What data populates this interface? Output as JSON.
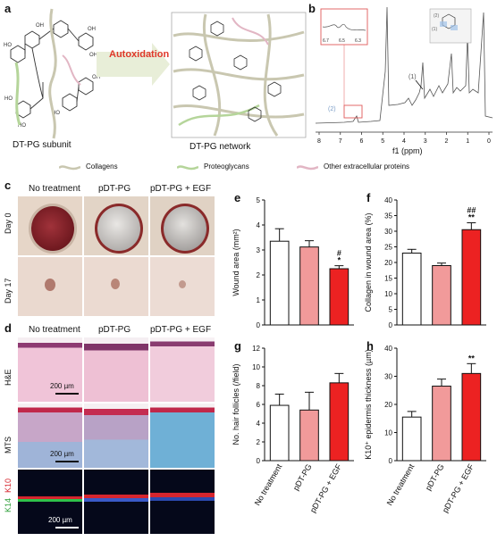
{
  "panel_labels": {
    "a": "a",
    "b": "b",
    "c": "c",
    "d": "d",
    "e": "e",
    "f": "f",
    "g": "g",
    "h": "h"
  },
  "panel_a": {
    "arrow_label": "Autoxidation",
    "left_caption": "DT-PG subunit",
    "right_caption": "DT-PG network"
  },
  "panel_b": {
    "xlabel": "f1 (ppm)",
    "xticks": [
      "8",
      "7",
      "6",
      "5",
      "4",
      "3",
      "2",
      "1",
      "0"
    ],
    "inset_xticks": [
      "6.7",
      "6.5",
      "6.3"
    ],
    "peak_labels": [
      "(1)",
      "(2)"
    ]
  },
  "legend": {
    "items": [
      {
        "label": "Collagens",
        "color": "#c9c7b0"
      },
      {
        "label": "Proteoglycans",
        "color": "#b5d59a"
      },
      {
        "label": "Other extracellular proteins",
        "color": "#e2b6c4"
      }
    ]
  },
  "panel_c": {
    "columns": [
      "No treatment",
      "pDT-PG",
      "pDT-PG + EGF"
    ],
    "rows": [
      "Day 0",
      "Day 17"
    ]
  },
  "panel_d": {
    "columns": [
      "No treatment",
      "pDT-PG",
      "pDT-PG + EGF"
    ],
    "rows": [
      "H&E",
      "MTS"
    ],
    "stain_row_labels": [
      "K14",
      "K10"
    ],
    "scale_bars": [
      "200 µm",
      "200 µm",
      "200 µm"
    ]
  },
  "groups": [
    "No treatment",
    "pDT-PG",
    "pDT-PG + EGF"
  ],
  "chart_data": [
    {
      "panel": "e",
      "type": "bar",
      "categories": [
        "No treatment",
        "pDT-PG",
        "pDT-PG + EGF"
      ],
      "values": [
        3.35,
        3.12,
        2.25
      ],
      "errors": [
        0.5,
        0.25,
        0.12
      ],
      "ylim": [
        0,
        5
      ],
      "yticks": [
        "0",
        "1",
        "2",
        "3",
        "4",
        "5"
      ],
      "ylabel": "Wound area (mm²)",
      "annotations": [
        "",
        "",
        "#\n*"
      ]
    },
    {
      "panel": "f",
      "type": "bar",
      "categories": [
        "No treatment",
        "pDT-PG",
        "pDT-PG + EGF"
      ],
      "values": [
        23,
        19,
        30.5
      ],
      "errors": [
        1.2,
        0.8,
        2.2
      ],
      "ylim": [
        0,
        40
      ],
      "yticks": [
        "0",
        "5",
        "10",
        "15",
        "20",
        "25",
        "30",
        "35",
        "40"
      ],
      "ylabel": "Collagen in wound area (%)",
      "annotations": [
        "",
        "",
        "##\n**"
      ]
    },
    {
      "panel": "g",
      "type": "bar",
      "categories": [
        "No treatment",
        "pDT-PG",
        "pDT-PG + EGF"
      ],
      "values": [
        5.9,
        5.4,
        8.3
      ],
      "errors": [
        1.2,
        1.9,
        1.0
      ],
      "ylim": [
        0,
        12
      ],
      "yticks": [
        "0",
        "2",
        "4",
        "6",
        "8",
        "10",
        "12"
      ],
      "ylabel": "No. hair follicles (/field)",
      "annotations": [
        "",
        "",
        ""
      ]
    },
    {
      "panel": "h",
      "type": "bar",
      "categories": [
        "No treatment",
        "pDT-PG",
        "pDT-PG + EGF"
      ],
      "values": [
        15.5,
        26.5,
        31
      ],
      "errors": [
        2.0,
        2.5,
        3.5
      ],
      "ylim": [
        0,
        40
      ],
      "yticks": [
        "0",
        "10",
        "20",
        "30",
        "40"
      ],
      "ylabel": "K10⁺ epidermis thickness (µm)",
      "annotations": [
        "",
        "",
        "**"
      ]
    }
  ],
  "bar_colors": [
    "#ffffff",
    "#f19a9a",
    "#ec2222"
  ]
}
